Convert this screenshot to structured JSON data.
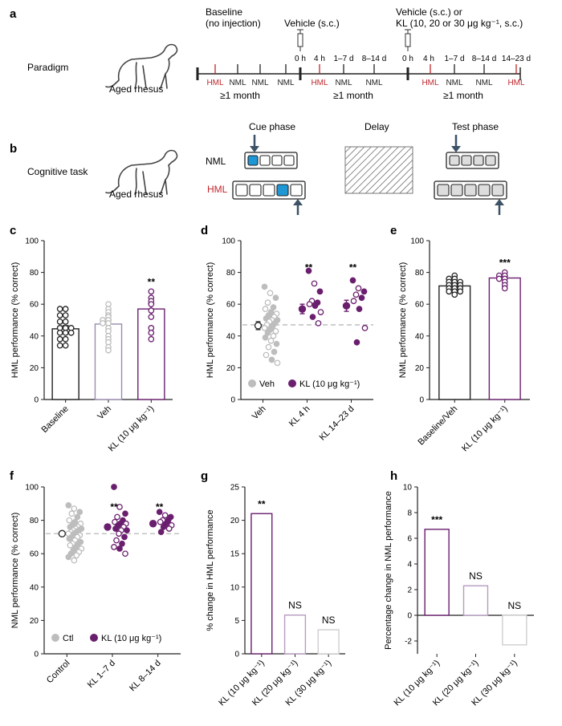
{
  "colors": {
    "purple": "#6a1f6e",
    "red": "#c0272d",
    "grey": "#9a9a9a",
    "lightgrey": "#bdbdbd",
    "cue": "#1f97d4",
    "dark": "#222222",
    "dashed": "#b8b8b8"
  },
  "panel_a": {
    "letter": "a",
    "row_label": "Paradigm",
    "animal_label": "Aged rhesus",
    "baseline_title": "Baseline",
    "baseline_sub": "(no injection)",
    "vehicle_title": "Vehicle (s.c.)",
    "kl_title_1": "Vehicle (s.c.) or",
    "kl_title_2": "KL (10, 20 or 30 μg kg⁻¹, s.c.)",
    "seg1": [
      "HML",
      "NML",
      "NML",
      "NML"
    ],
    "seg2_top": [
      "0 h",
      "4 h",
      "1–7 d",
      "8–14 d"
    ],
    "seg2_bottom": [
      "HML",
      "NML",
      "NML"
    ],
    "seg3_top": [
      "0 h",
      "4 h",
      "1–7 d",
      "8–14 d",
      "14–23 d"
    ],
    "seg3_bottom": [
      "HML",
      "NML",
      "NML",
      "HML"
    ],
    "month_label": "≥1 month"
  },
  "panel_b": {
    "letter": "b",
    "row_label": "Cognitive task",
    "animal_label": "Aged rhesus",
    "cue_phase": "Cue phase",
    "delay": "Delay",
    "test_phase": "Test phase",
    "nml": "NML",
    "hml": "HML"
  },
  "chart_data": [
    {
      "id": "c",
      "letter": "c",
      "type": "bar",
      "categories": [
        "Baseline",
        "Veh",
        "KL (10 μg kg⁻¹)"
      ],
      "values": [
        44.5,
        47.5,
        57
      ],
      "errors": [
        2,
        2.5,
        3.5
      ],
      "points": [
        [
          57,
          57,
          53,
          53,
          49,
          49,
          45,
          45,
          45,
          42,
          42,
          42,
          38,
          38,
          34,
          34
        ],
        [
          60,
          57,
          55,
          53,
          52,
          50,
          50,
          48,
          48,
          45,
          43,
          40,
          38,
          36,
          33,
          31
        ],
        [
          68,
          64,
          62,
          60,
          56,
          52,
          45,
          42,
          38
        ]
      ],
      "ylabel": "HML performance (% correct)",
      "ylim": [
        0,
        100
      ],
      "yticks": [
        0,
        20,
        40,
        60,
        80,
        100
      ],
      "annotations": [
        {
          "index": 2,
          "text": "**"
        }
      ]
    },
    {
      "id": "d",
      "letter": "d",
      "type": "scatter",
      "categories": [
        "Veh",
        "KL 4 h",
        "KL 14–23 d"
      ],
      "means": [
        46.5,
        57,
        59
      ],
      "errors": [
        2.5,
        3,
        3.5
      ],
      "baseline": 47,
      "points": [
        [
          71,
          67,
          64,
          61,
          58,
          57,
          55,
          54,
          53,
          52,
          51,
          50,
          50,
          49,
          48,
          47,
          46,
          45,
          44,
          43,
          42,
          40,
          39,
          37,
          35,
          33,
          30,
          28,
          25,
          23
        ],
        [
          81,
          73,
          68,
          62,
          61,
          60,
          59,
          55,
          52,
          48
        ],
        [
          75,
          70,
          68,
          66,
          64,
          62,
          57,
          45,
          36
        ]
      ],
      "legend": [
        "Veh",
        "KL (10 μg kg⁻¹)"
      ],
      "ylabel": "HML performance (% correct)",
      "ylim": [
        0,
        100
      ],
      "yticks": [
        0,
        20,
        40,
        60,
        80,
        100
      ],
      "annotations": [
        {
          "index": 1,
          "text": "**"
        },
        {
          "index": 2,
          "text": "**"
        }
      ]
    },
    {
      "id": "e",
      "letter": "e",
      "type": "bar",
      "categories": [
        "Baseline/Veh",
        "KL (10 μg kg⁻¹)"
      ],
      "values": [
        71.5,
        76.5
      ],
      "errors": [
        1,
        1.2
      ],
      "points": [
        [
          78,
          76,
          76,
          74,
          74,
          74,
          72,
          72,
          72,
          70,
          70,
          70,
          68,
          68,
          68,
          66
        ],
        [
          80,
          78,
          78,
          76,
          76,
          74,
          72,
          70
        ]
      ],
      "ylabel": "NML performance (% correct)",
      "ylim": [
        0,
        100
      ],
      "yticks": [
        0,
        20,
        40,
        60,
        80,
        100
      ],
      "annotations": [
        {
          "index": 1,
          "text": "***"
        }
      ]
    },
    {
      "id": "f",
      "letter": "f",
      "type": "scatter",
      "categories": [
        "Control",
        "KL 1–7 d",
        "KL 8–14 d"
      ],
      "means": [
        72,
        76,
        78
      ],
      "errors": [
        1,
        1.5,
        1.5
      ],
      "baseline": 72,
      "points": [
        [
          89,
          87,
          85,
          84,
          82,
          80,
          79,
          78,
          77,
          76,
          76,
          75,
          75,
          74,
          74,
          73,
          73,
          72,
          72,
          71,
          70,
          70,
          69,
          68,
          67,
          66,
          66,
          65,
          64,
          63,
          62,
          61,
          60,
          59,
          58,
          56
        ],
        [
          100,
          88,
          84,
          82,
          80,
          79,
          78,
          78,
          77,
          76,
          75,
          74,
          74,
          72,
          70,
          68,
          66,
          64,
          63,
          60
        ],
        [
          85,
          83,
          82,
          80,
          80,
          79,
          78,
          77,
          76,
          75,
          73
        ]
      ],
      "legend": [
        "Ctl",
        "KL (10 μg kg⁻¹)"
      ],
      "ylabel": "NML performance (% correct)",
      "ylim": [
        0,
        100
      ],
      "yticks": [
        0,
        20,
        40,
        60,
        80,
        100
      ],
      "annotations": [
        {
          "index": 1,
          "text": "**"
        },
        {
          "index": 2,
          "text": "**"
        }
      ]
    },
    {
      "id": "g",
      "letter": "g",
      "type": "bar",
      "categories": [
        "KL (10 μg kg⁻¹)",
        "KL (20 μg kg⁻¹)",
        "KL (30 μg kg⁻¹)"
      ],
      "values": [
        21,
        5.8,
        3.6
      ],
      "ylabel": "% change in HML performance",
      "ylim": [
        0,
        25
      ],
      "yticks": [
        0,
        5,
        10,
        15,
        20,
        25
      ],
      "annotations": [
        {
          "index": 0,
          "text": "**"
        },
        {
          "index": 1,
          "text": "NS"
        },
        {
          "index": 2,
          "text": "NS"
        }
      ]
    },
    {
      "id": "h",
      "letter": "h",
      "type": "bar",
      "categories": [
        "KL (10 μg kg⁻¹)",
        "KL (20 μg kg⁻¹)",
        "KL (30 μg kg⁻¹)"
      ],
      "values": [
        6.7,
        2.3,
        -2.3
      ],
      "ylabel": "Percentage change in NML performance",
      "ylim": [
        -3,
        10
      ],
      "yticks": [
        -2,
        0,
        2,
        4,
        6,
        8,
        10
      ],
      "annotations": [
        {
          "index": 0,
          "text": "***"
        },
        {
          "index": 1,
          "text": "NS"
        },
        {
          "index": 2,
          "text": "NS"
        }
      ]
    }
  ]
}
